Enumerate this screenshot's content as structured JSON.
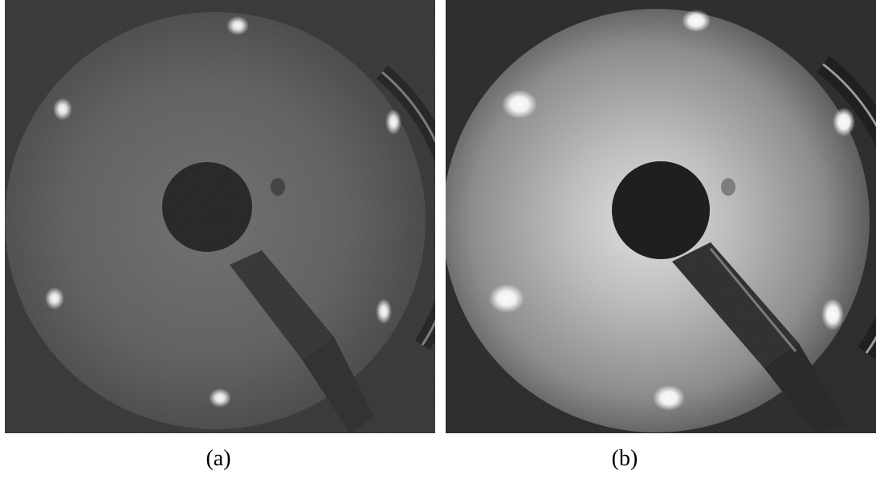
{
  "figure": {
    "panels": [
      {
        "id": "a",
        "caption": "(a)",
        "brightness": "dim",
        "spot_count": 6
      },
      {
        "id": "b",
        "caption": "(b)",
        "brightness": "bright",
        "spot_count": 6
      }
    ]
  }
}
